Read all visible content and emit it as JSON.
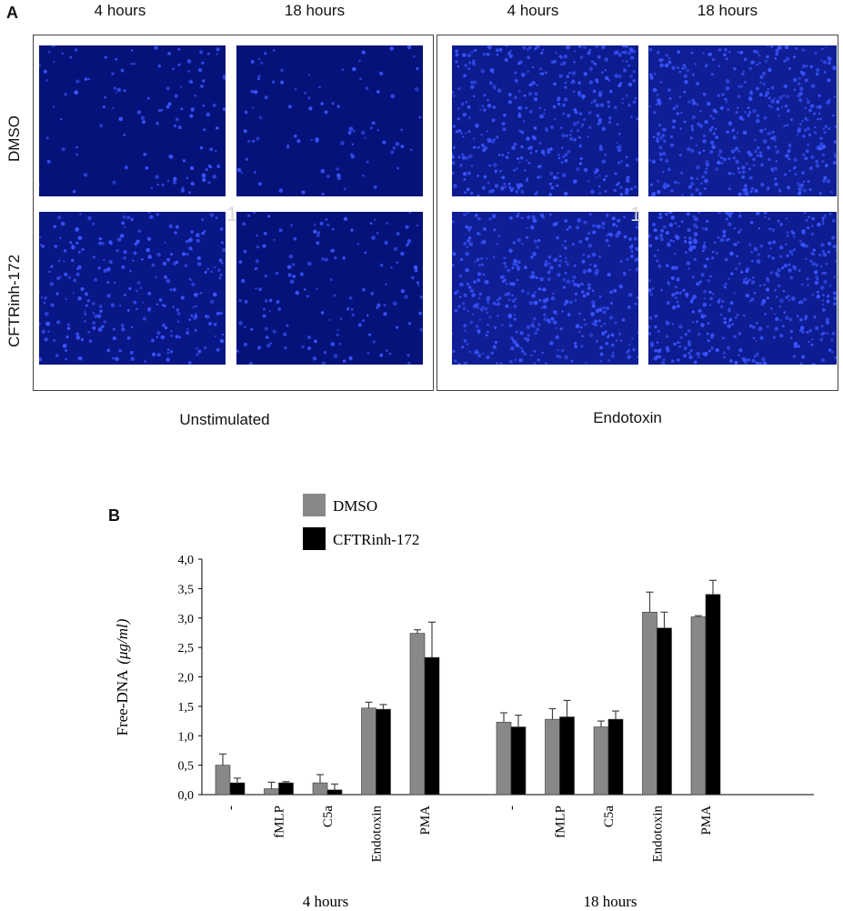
{
  "panel_a": {
    "letter": "A",
    "groups": [
      {
        "caption": "Unstimulated",
        "columns": [
          "4 hours",
          "18 hours"
        ],
        "marker": "1"
      },
      {
        "caption": "Endotoxin",
        "columns": [
          "4 hours",
          "18 hours"
        ],
        "marker": "1"
      }
    ],
    "rows": [
      "DMSO",
      "CFTRinh-172"
    ],
    "colors": {
      "micrograph_background": "#05127a",
      "nuclei": "#3a55ff"
    }
  },
  "panel_b": {
    "letter": "B"
  },
  "chart_data": {
    "type": "bar",
    "ylabel_text": "Free-DNA",
    "ylabel_unit": "(μg/ml)",
    "ylim": [
      0,
      4
    ],
    "yticks": [
      "0,0",
      "0,5",
      "1,0",
      "1,5",
      "2,0",
      "2,5",
      "3,0",
      "3,5",
      "4,0"
    ],
    "group_labels": [
      "4 hours",
      "18 hours"
    ],
    "categories": [
      "-",
      "fMLP",
      "C5a",
      "Endotoxin",
      "PMA"
    ],
    "legend_position": "top-center",
    "grid": false,
    "series": [
      {
        "name": "DMSO",
        "color": "#888888",
        "values": [
          [
            0.5,
            0.1,
            0.2,
            1.47,
            2.74
          ],
          [
            1.23,
            1.28,
            1.15,
            3.1,
            3.02
          ]
        ],
        "errors": [
          [
            0.19,
            0.11,
            0.14,
            0.1,
            0.06
          ],
          [
            0.16,
            0.18,
            0.1,
            0.34,
            0.02
          ]
        ]
      },
      {
        "name": "CFTRinh-172",
        "color": "#000000",
        "values": [
          [
            0.2,
            0.2,
            0.08,
            1.45,
            2.33
          ],
          [
            1.15,
            1.32,
            1.28,
            2.83,
            3.4
          ]
        ],
        "errors": [
          [
            0.08,
            0.02,
            0.1,
            0.08,
            0.6
          ],
          [
            0.2,
            0.28,
            0.14,
            0.27,
            0.24
          ]
        ]
      }
    ]
  }
}
